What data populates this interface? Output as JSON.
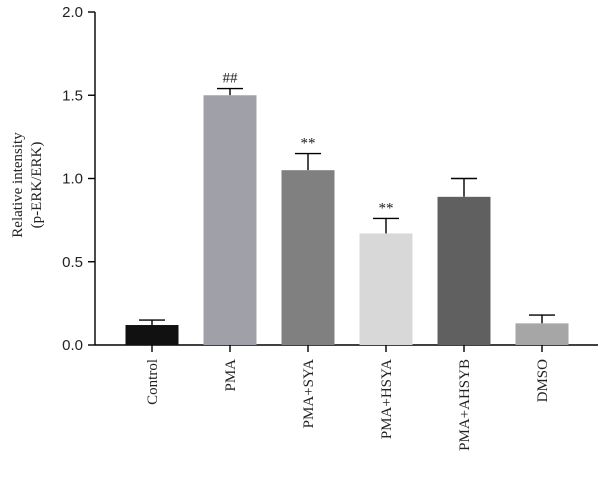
{
  "chart_data": {
    "type": "bar",
    "ylabel_lines": [
      "Relative intensity",
      "(p-ERK/ERK)"
    ],
    "ylim": [
      0,
      2.0
    ],
    "yticks": [
      "0.0",
      "0.5",
      "1.0",
      "1.5",
      "2.0"
    ],
    "ytick_values": [
      0,
      0.5,
      1.0,
      1.5,
      2.0
    ],
    "categories": [
      "Control",
      "PMA",
      "PMA+SYA",
      "PMA+HSYA",
      "PMA+AHSYB",
      "DMSO"
    ],
    "values": [
      0.12,
      1.5,
      1.05,
      0.67,
      0.89,
      0.13
    ],
    "errors": [
      0.03,
      0.04,
      0.1,
      0.09,
      0.11,
      0.05
    ],
    "annotations": [
      "",
      "##",
      "**",
      "**",
      "",
      ""
    ],
    "colors": [
      "#111111",
      "#a0a0a8",
      "#808080",
      "#d8d8d8",
      "#606060",
      "#a6a6a6"
    ],
    "grid": false,
    "legend": "none"
  }
}
